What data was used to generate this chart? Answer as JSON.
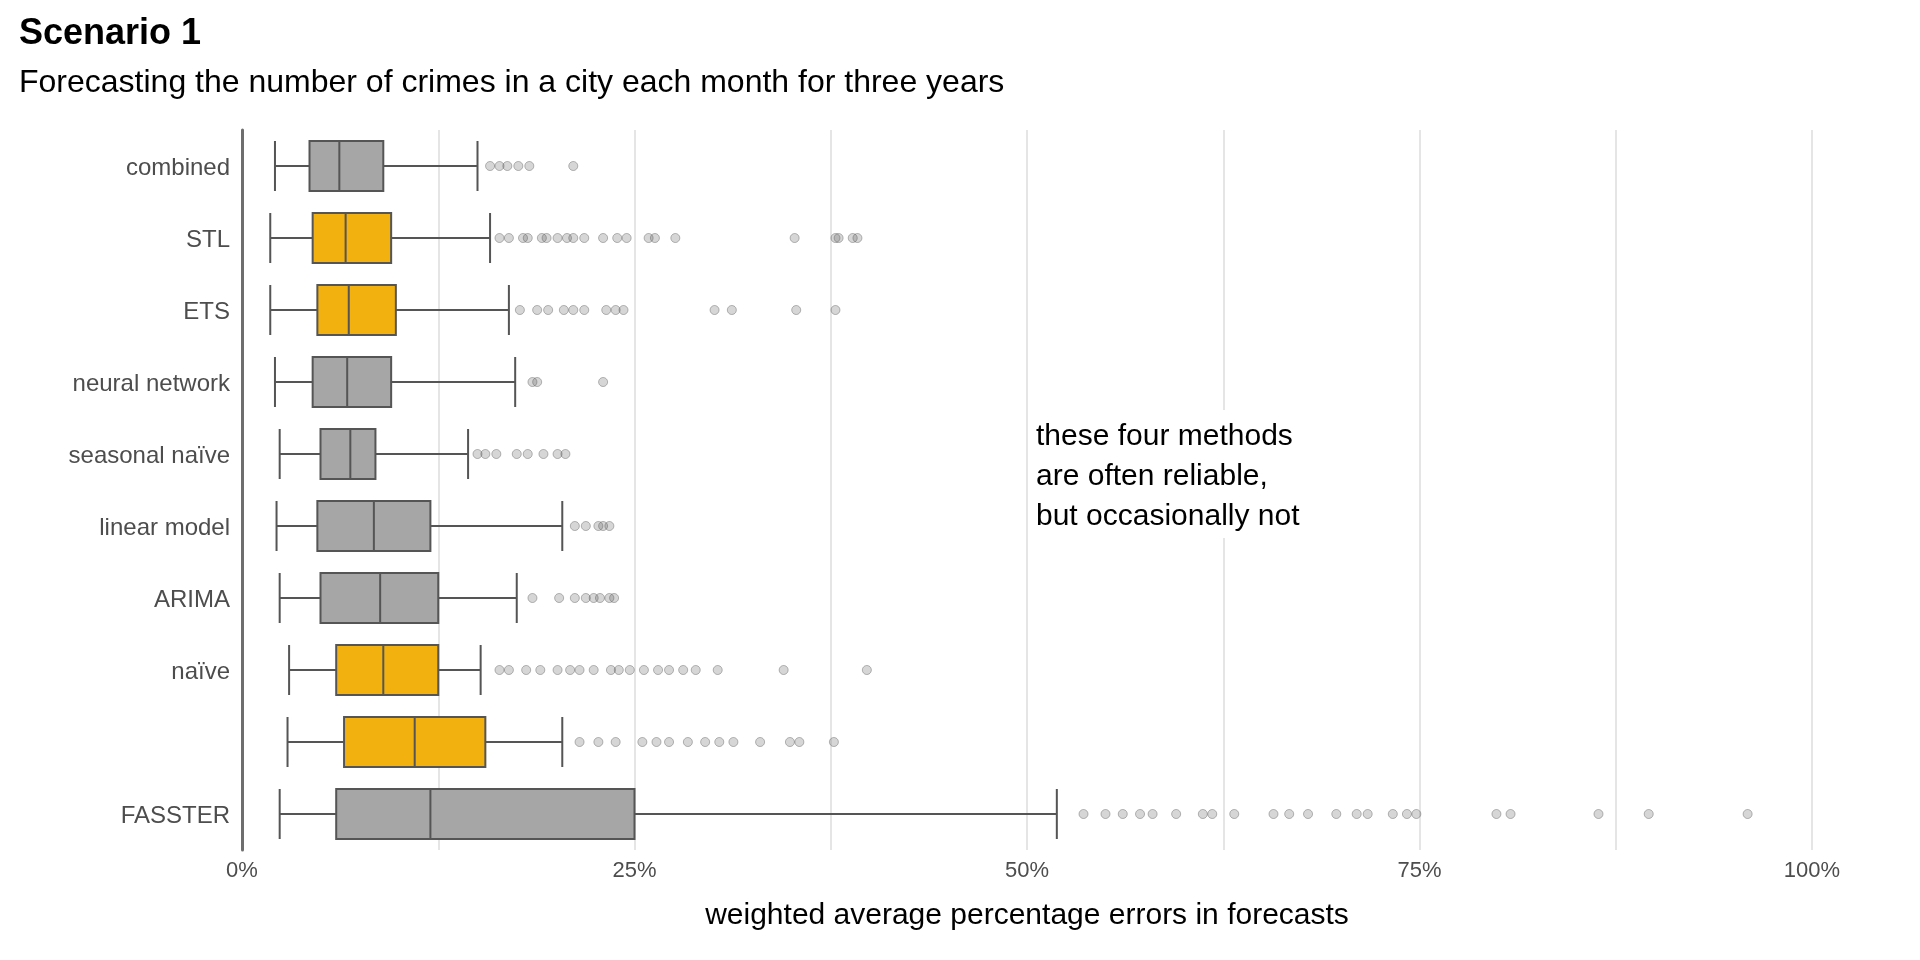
{
  "chart_data": {
    "type": "box",
    "orientation": "horizontal",
    "title": "Scenario 1",
    "subtitle": "Forecasting the number of crimes in a city each month for three years",
    "xlabel": "weighted average percentage errors in forecasts",
    "categories": [
      "combined",
      "STL",
      "ETS",
      "neural network",
      "seasonal naïve",
      "linear model",
      "ARIMA",
      "naïve",
      null,
      "FASSTER"
    ],
    "colors": [
      "#a6a6a6",
      "#f2b10e",
      "#f2b10e",
      "#a6a6a6",
      "#a6a6a6",
      "#a6a6a6",
      "#a6a6a6",
      "#f2b10e",
      "#f2b10e",
      "#a6a6a6"
    ],
    "boxes": [
      {
        "low": 2.1,
        "q1": 4.3,
        "median": 6.2,
        "q3": 9,
        "high": 15,
        "outliers": [
          15.8,
          16.4,
          16.9,
          17.6,
          18.3,
          21.1
        ]
      },
      {
        "low": 1.8,
        "q1": 4.5,
        "median": 6.6,
        "q3": 9.5,
        "high": 15.8,
        "outliers": [
          16.4,
          17,
          17.9,
          18.2,
          19.1,
          19.4,
          20.1,
          20.7,
          21.1,
          21.8,
          23,
          23.9,
          24.5,
          25.9,
          26.3,
          27.6,
          35.2,
          37.8,
          38,
          38.9,
          39.2
        ]
      },
      {
        "low": 1.8,
        "q1": 4.8,
        "median": 6.8,
        "q3": 9.8,
        "high": 17,
        "outliers": [
          17.7,
          18.8,
          19.5,
          20.5,
          21.1,
          21.8,
          23.2,
          23.8,
          24.3,
          30.1,
          31.2,
          35.3,
          37.8
        ]
      },
      {
        "low": 2.1,
        "q1": 4.5,
        "median": 6.7,
        "q3": 9.5,
        "high": 17.4,
        "outliers": [
          18.5,
          18.8,
          23
        ]
      },
      {
        "low": 2.4,
        "q1": 5,
        "median": 6.9,
        "q3": 8.5,
        "high": 14.4,
        "outliers": [
          15,
          15.5,
          16.2,
          17.5,
          18.2,
          19.2,
          20.1,
          20.6
        ]
      },
      {
        "low": 2.2,
        "q1": 4.8,
        "median": 8.4,
        "q3": 12,
        "high": 20.4,
        "outliers": [
          21.2,
          21.9,
          22.7,
          23,
          23.4
        ]
      },
      {
        "low": 2.4,
        "q1": 5,
        "median": 8.8,
        "q3": 12.5,
        "high": 17.5,
        "outliers": [
          18.5,
          20.2,
          21.2,
          21.9,
          22.4,
          22.8,
          23.4,
          23.7
        ]
      },
      {
        "low": 3,
        "q1": 6,
        "median": 9,
        "q3": 12.5,
        "high": 15.2,
        "outliers": [
          16.4,
          17,
          18.1,
          19,
          20.1,
          20.9,
          21.5,
          22.4,
          23.5,
          24,
          24.7,
          25.6,
          26.5,
          27.2,
          28.1,
          28.9,
          30.3,
          34.5,
          39.8
        ]
      },
      {
        "low": 2.9,
        "q1": 6.5,
        "median": 11,
        "q3": 15.5,
        "high": 20.4,
        "outliers": [
          21.5,
          22.7,
          23.8,
          25.5,
          26.4,
          27.2,
          28.4,
          29.5,
          30.4,
          31.3,
          33,
          34.9,
          35.5,
          37.7
        ]
      },
      {
        "low": 2.4,
        "q1": 6,
        "median": 12,
        "q3": 25,
        "high": 51.9,
        "outliers": [
          53.6,
          55,
          56.1,
          57.2,
          58,
          59.5,
          61.2,
          61.8,
          63.2,
          65.7,
          66.7,
          67.9,
          69.7,
          71,
          71.7,
          73.3,
          74.2,
          74.8,
          79.9,
          80.8,
          86.4,
          89.6,
          95.9
        ]
      }
    ],
    "xlim": [
      0,
      100
    ],
    "xticks": [
      {
        "value": 0,
        "label": "0%"
      },
      {
        "value": 12.5,
        "label": null
      },
      {
        "value": 25,
        "label": "25%"
      },
      {
        "value": 37.5,
        "label": null
      },
      {
        "value": 50,
        "label": "50%"
      },
      {
        "value": 62.5,
        "label": null
      },
      {
        "value": 75,
        "label": "75%"
      },
      {
        "value": 87.5,
        "label": null
      },
      {
        "value": 100,
        "label": "100%"
      }
    ],
    "grid": "x",
    "annotations": [
      "these four methods\nare often reliable,\nbut occasionally not"
    ]
  }
}
